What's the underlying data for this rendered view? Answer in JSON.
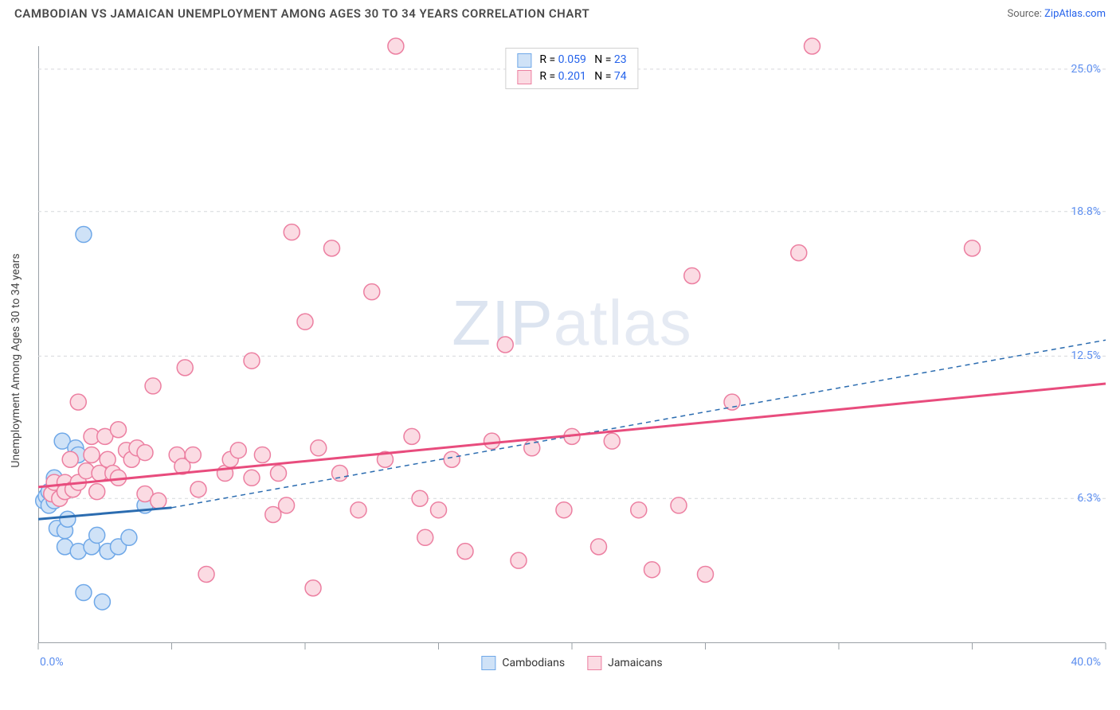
{
  "title": "CAMBODIAN VS JAMAICAN UNEMPLOYMENT AMONG AGES 30 TO 34 YEARS CORRELATION CHART",
  "source_prefix": "Source: ",
  "source_link": "ZipAtlas.com",
  "y_axis_label": "Unemployment Among Ages 30 to 34 years",
  "watermark_bold": "ZIP",
  "watermark_light": "atlas",
  "chart": {
    "type": "scatter",
    "xlim": [
      0,
      40
    ],
    "ylim": [
      0,
      26
    ],
    "x_label_min": "0.0%",
    "x_label_max": "40.0%",
    "y_ticks": [
      6.3,
      12.5,
      18.8,
      25.0
    ],
    "y_tick_labels": [
      "6.3%",
      "12.5%",
      "18.8%",
      "25.0%"
    ],
    "x_ticks": [
      0,
      5,
      10,
      15,
      20,
      25,
      30,
      35,
      40
    ],
    "grid_color": "#d6d8dc",
    "background_color": "#ffffff",
    "marker_radius": 10,
    "series": [
      {
        "name": "Cambodians",
        "color_fill": "#cfe2f7",
        "color_stroke": "#6fa8e8",
        "R": "0.059",
        "N": "23",
        "trend": {
          "x1": 0,
          "y1": 5.4,
          "x2": 5,
          "y2": 5.9,
          "dashed_ext_x2": 40,
          "dashed_ext_y2": 13.2,
          "stroke": "#2b6cb0",
          "width": 3
        },
        "points": [
          [
            0.2,
            6.2
          ],
          [
            0.3,
            6.4
          ],
          [
            0.4,
            6.0
          ],
          [
            0.4,
            6.6
          ],
          [
            0.6,
            6.2
          ],
          [
            0.6,
            7.2
          ],
          [
            0.7,
            5.0
          ],
          [
            0.9,
            8.8
          ],
          [
            1.0,
            4.2
          ],
          [
            1.0,
            4.9
          ],
          [
            1.1,
            5.4
          ],
          [
            1.4,
            8.5
          ],
          [
            1.5,
            4.0
          ],
          [
            1.5,
            8.2
          ],
          [
            1.7,
            2.2
          ],
          [
            2.0,
            4.2
          ],
          [
            2.2,
            4.7
          ],
          [
            2.4,
            1.8
          ],
          [
            2.6,
            4.0
          ],
          [
            3.0,
            4.2
          ],
          [
            3.4,
            4.6
          ],
          [
            4.0,
            6.0
          ],
          [
            1.7,
            17.8
          ]
        ]
      },
      {
        "name": "Jamaicans",
        "color_fill": "#fbdbe3",
        "color_stroke": "#ec7fa1",
        "R": "0.201",
        "N": "74",
        "trend": {
          "x1": 0,
          "y1": 6.8,
          "x2": 40,
          "y2": 11.3,
          "stroke": "#e84c7d",
          "width": 3
        },
        "points": [
          [
            0.5,
            6.5
          ],
          [
            0.6,
            7.0
          ],
          [
            0.8,
            6.3
          ],
          [
            1.0,
            7.0
          ],
          [
            1.0,
            6.6
          ],
          [
            1.2,
            8.0
          ],
          [
            1.3,
            6.7
          ],
          [
            1.5,
            7.0
          ],
          [
            1.5,
            10.5
          ],
          [
            1.8,
            7.5
          ],
          [
            2.0,
            8.2
          ],
          [
            2.0,
            9.0
          ],
          [
            2.2,
            6.6
          ],
          [
            2.3,
            7.4
          ],
          [
            2.5,
            9.0
          ],
          [
            2.6,
            8.0
          ],
          [
            2.8,
            7.4
          ],
          [
            3.0,
            7.2
          ],
          [
            3.0,
            9.3
          ],
          [
            3.3,
            8.4
          ],
          [
            3.5,
            8.0
          ],
          [
            3.7,
            8.5
          ],
          [
            4.0,
            8.3
          ],
          [
            4.0,
            6.5
          ],
          [
            4.3,
            11.2
          ],
          [
            4.5,
            6.2
          ],
          [
            5.2,
            8.2
          ],
          [
            5.4,
            7.7
          ],
          [
            5.5,
            12.0
          ],
          [
            5.8,
            8.2
          ],
          [
            6.0,
            6.7
          ],
          [
            6.3,
            3.0
          ],
          [
            7.0,
            7.4
          ],
          [
            7.2,
            8.0
          ],
          [
            7.5,
            8.4
          ],
          [
            8.0,
            7.2
          ],
          [
            8.0,
            12.3
          ],
          [
            8.4,
            8.2
          ],
          [
            9.0,
            7.4
          ],
          [
            9.3,
            6.0
          ],
          [
            9.5,
            17.9
          ],
          [
            10.0,
            14.0
          ],
          [
            10.3,
            2.4
          ],
          [
            10.5,
            8.5
          ],
          [
            11.0,
            17.2
          ],
          [
            11.3,
            7.4
          ],
          [
            12.0,
            5.8
          ],
          [
            12.5,
            15.3
          ],
          [
            13.0,
            8.0
          ],
          [
            13.4,
            26.0
          ],
          [
            14.0,
            9.0
          ],
          [
            14.5,
            4.6
          ],
          [
            15.0,
            5.8
          ],
          [
            15.5,
            8.0
          ],
          [
            16.0,
            4.0
          ],
          [
            17.0,
            8.8
          ],
          [
            17.5,
            13.0
          ],
          [
            18.0,
            3.6
          ],
          [
            18.5,
            8.5
          ],
          [
            19.7,
            5.8
          ],
          [
            20.0,
            9.0
          ],
          [
            21.0,
            4.2
          ],
          [
            21.5,
            8.8
          ],
          [
            22.5,
            5.8
          ],
          [
            23.0,
            3.2
          ],
          [
            24.0,
            6.0
          ],
          [
            24.5,
            16.0
          ],
          [
            25.0,
            3.0
          ],
          [
            26.0,
            10.5
          ],
          [
            28.5,
            17.0
          ],
          [
            29.0,
            26.0
          ],
          [
            35.0,
            17.2
          ],
          [
            14.3,
            6.3
          ],
          [
            8.8,
            5.6
          ]
        ]
      }
    ],
    "legend_stats": [
      {
        "swatch_fill": "#cfe2f7",
        "swatch_stroke": "#6fa8e8",
        "R": "0.059",
        "N": "23"
      },
      {
        "swatch_fill": "#fbdbe3",
        "swatch_stroke": "#ec7fa1",
        "R": "0.201",
        "N": "74"
      }
    ],
    "bottom_legend": [
      {
        "label": "Cambodians",
        "fill": "#cfe2f7",
        "stroke": "#6fa8e8"
      },
      {
        "label": "Jamaicans",
        "fill": "#fbdbe3",
        "stroke": "#ec7fa1"
      }
    ]
  }
}
